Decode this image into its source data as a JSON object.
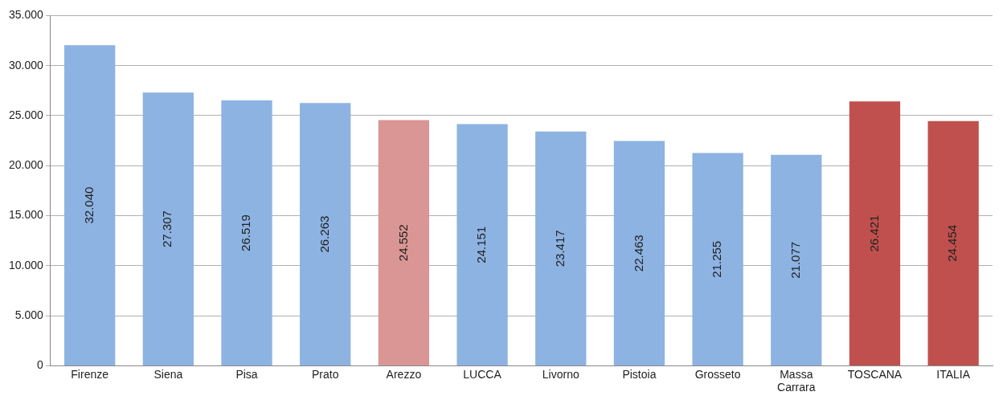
{
  "chart_data": {
    "type": "bar",
    "categories": [
      "Firenze",
      "Siena",
      "Pisa",
      "Prato",
      "Arezzo",
      "LUCCA",
      "Livorno",
      "Pistoia",
      "Grosseto",
      "Massa Carrara",
      "TOSCANA",
      "ITALIA"
    ],
    "values": [
      32040,
      27307,
      26519,
      26263,
      24552,
      24151,
      23417,
      22463,
      21255,
      21077,
      26421,
      24454
    ],
    "colors": [
      "#8db3e2",
      "#8db3e2",
      "#8db3e2",
      "#8db3e2",
      "#d99694",
      "#8db3e2",
      "#8db3e2",
      "#8db3e2",
      "#8db3e2",
      "#8db3e2",
      "#c0504d",
      "#c0504d"
    ],
    "value_labels": [
      "32.040",
      "27.307",
      "26.519",
      "26.263",
      "24.552",
      "24.151",
      "23.417",
      "22.463",
      "21.255",
      "21.077",
      "26.421",
      "24.454"
    ],
    "ylim": [
      0,
      35000
    ],
    "yticks": [
      {
        "value": 0,
        "label": "0"
      },
      {
        "value": 5000,
        "label": "5.000"
      },
      {
        "value": 10000,
        "label": "10.000"
      },
      {
        "value": 15000,
        "label": "15.000"
      },
      {
        "value": 20000,
        "label": "20.000"
      },
      {
        "value": 25000,
        "label": "25.000"
      },
      {
        "value": 30000,
        "label": "30.000"
      },
      {
        "value": 35000,
        "label": "35.000"
      }
    ],
    "grid": "y",
    "legend": false
  }
}
